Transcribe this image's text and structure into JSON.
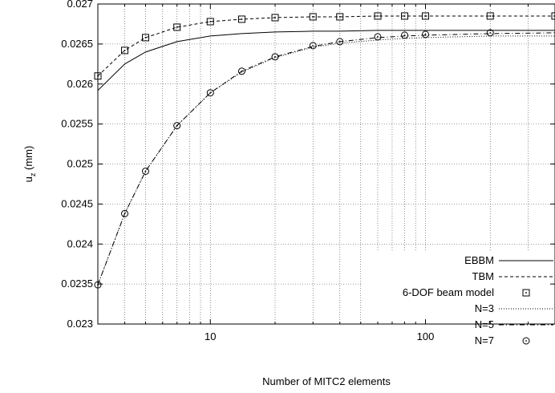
{
  "chart_data": {
    "type": "line",
    "xlabel": "Number of MITC2 elements",
    "ylabel": "u",
    "ylabel_sub": "z",
    "ylabel_unit": " (mm)",
    "xscale": "log",
    "xlim": [
      3,
      400
    ],
    "ylim": [
      0.023,
      0.027
    ],
    "x_ticks": [
      10,
      100
    ],
    "x_tick_labels": [
      "10",
      "100"
    ],
    "y_ticks": [
      0.023,
      0.0235,
      0.024,
      0.0245,
      0.025,
      0.0255,
      0.026,
      0.0265,
      0.027
    ],
    "y_tick_labels": [
      "0.023",
      "0.0235",
      "0.024",
      "0.0245",
      "0.025",
      "0.0255",
      "0.026",
      "0.0265",
      "0.027"
    ],
    "grid": true,
    "legend_position": "bottom-right",
    "series": [
      {
        "name": "EBBM",
        "style": "solid",
        "marker": "none",
        "x": [
          3,
          4,
          5,
          7,
          10,
          14,
          20,
          30,
          40,
          60,
          80,
          100,
          200,
          400
        ],
        "y": [
          0.02592,
          0.02625,
          0.0264,
          0.02653,
          0.0266,
          0.02663,
          0.02665,
          0.02666,
          0.02666,
          0.02667,
          0.02667,
          0.02667,
          0.02667,
          0.02667
        ]
      },
      {
        "name": "TBM",
        "style": "dashed",
        "marker": "none",
        "x": [
          3,
          4,
          5,
          7,
          10,
          14,
          20,
          30,
          40,
          60,
          80,
          100,
          200,
          400
        ],
        "y": [
          0.0261,
          0.02642,
          0.02658,
          0.02671,
          0.02678,
          0.02681,
          0.02683,
          0.02684,
          0.02684,
          0.02685,
          0.02685,
          0.02685,
          0.02685,
          0.02685
        ]
      },
      {
        "name": "6-DOF beam model",
        "style": "none",
        "marker": "square-dot",
        "x": [
          3,
          4,
          5,
          7,
          10,
          14,
          20,
          30,
          40,
          60,
          80,
          100,
          200,
          400
        ],
        "y": [
          0.0261,
          0.02642,
          0.02658,
          0.02671,
          0.02678,
          0.02681,
          0.02683,
          0.02684,
          0.02684,
          0.02685,
          0.02685,
          0.02685,
          0.02685,
          0.02685
        ]
      },
      {
        "name": "N=3",
        "style": "dotted",
        "marker": "none",
        "x": [
          3,
          4,
          5,
          7,
          10,
          14,
          20,
          30,
          40,
          60,
          80,
          100,
          200,
          400
        ],
        "y": [
          0.02349,
          0.02438,
          0.02491,
          0.02548,
          0.02589,
          0.02615,
          0.02633,
          0.02646,
          0.02651,
          0.02655,
          0.02657,
          0.02658,
          0.0266,
          0.0266
        ]
      },
      {
        "name": "N=5",
        "style": "dashdot",
        "marker": "none",
        "x": [
          3,
          4,
          5,
          7,
          10,
          14,
          20,
          30,
          40,
          60,
          80,
          100,
          200,
          400
        ],
        "y": [
          0.02349,
          0.02438,
          0.02491,
          0.02548,
          0.02589,
          0.02616,
          0.02634,
          0.02647,
          0.02653,
          0.02658,
          0.0266,
          0.02661,
          0.02663,
          0.02664
        ]
      },
      {
        "name": "N=7",
        "style": "none",
        "marker": "circle-dot",
        "x": [
          3,
          4,
          5,
          7,
          10,
          14,
          20,
          30,
          40,
          60,
          80,
          100,
          200
        ],
        "y": [
          0.02349,
          0.02438,
          0.02491,
          0.02548,
          0.02589,
          0.02616,
          0.02634,
          0.02648,
          0.02653,
          0.02659,
          0.02661,
          0.02662,
          0.02664
        ]
      }
    ]
  }
}
